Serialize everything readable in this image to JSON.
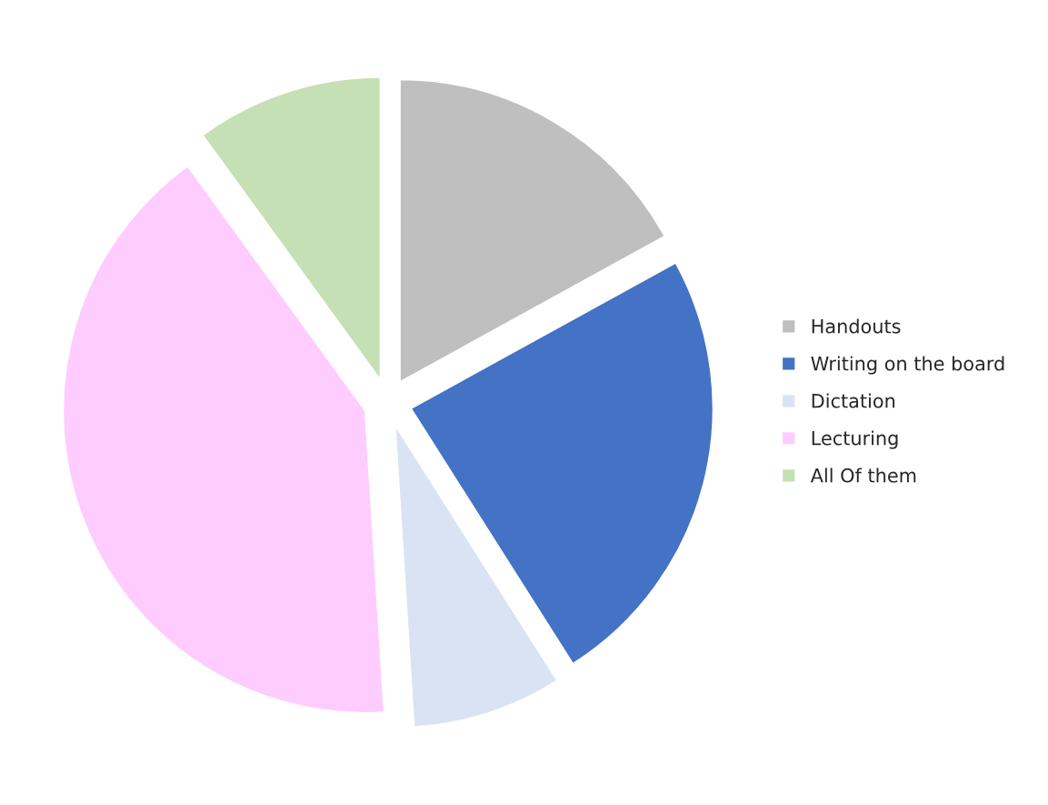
{
  "chart_data": {
    "type": "pie",
    "categories": [
      "Handouts",
      "Writing on the board",
      "Dictation",
      "Lecturing",
      "All Of them"
    ],
    "values": [
      17,
      24,
      8,
      41,
      10
    ],
    "colors": [
      "#bfbfbf",
      "#4472c4",
      "#dae3f3",
      "#ffccff",
      "#c5e0b4"
    ],
    "legend": "right"
  }
}
